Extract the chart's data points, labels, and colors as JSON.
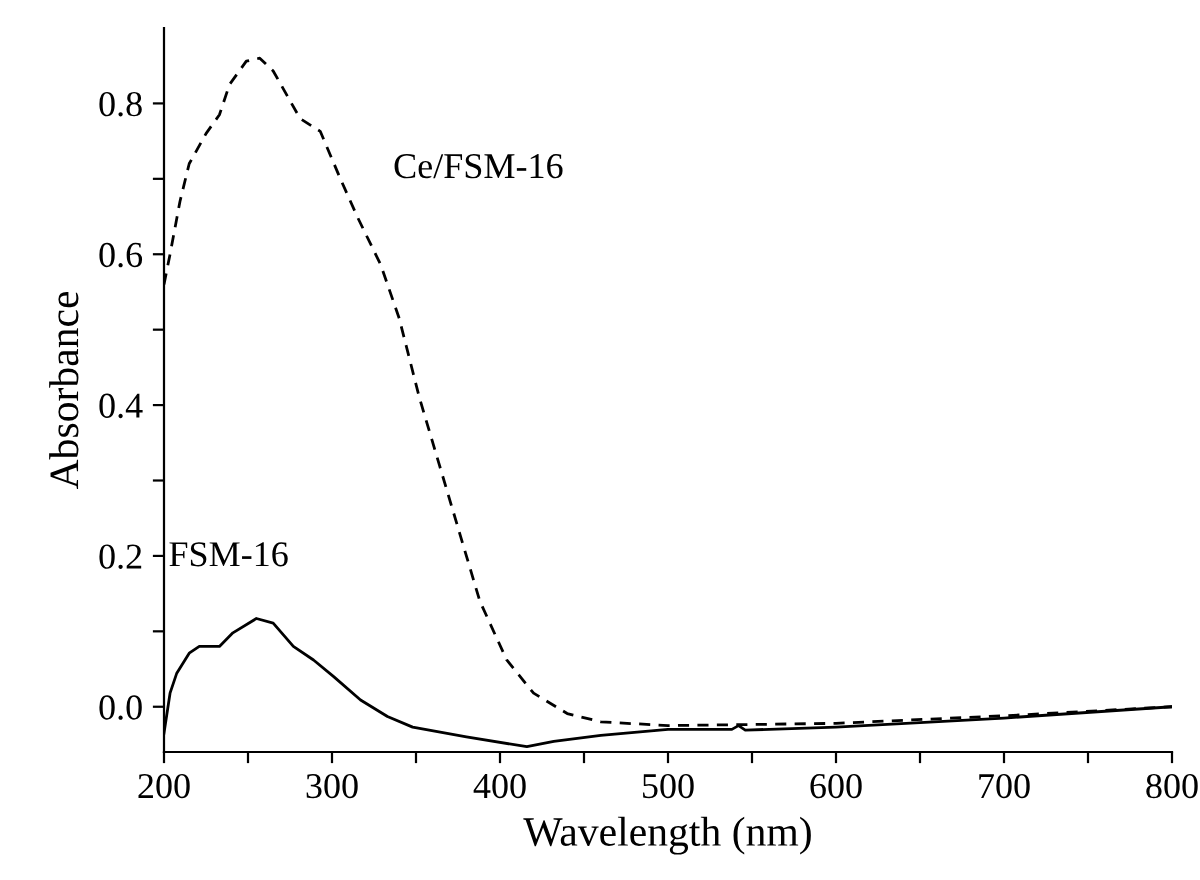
{
  "chart_data": {
    "type": "line",
    "xlabel": "Wavelength (nm)",
    "ylabel": "Absorbance",
    "xlim": [
      200,
      800
    ],
    "ylim": [
      -0.06,
      0.9
    ],
    "xticks": [
      200,
      {
        "value": 250,
        "label": null
      },
      300,
      {
        "value": 350,
        "label": null
      },
      400,
      {
        "value": 450,
        "label": null
      },
      500,
      {
        "value": 550,
        "label": null
      },
      600,
      {
        "value": 650,
        "label": null
      },
      700,
      {
        "value": 750,
        "label": null
      },
      800
    ],
    "yticks": [
      {
        "value": 0,
        "label": "0.0"
      },
      {
        "value": 0.1,
        "label": null
      },
      0.2,
      {
        "value": 0.3,
        "label": null
      },
      0.4,
      {
        "value": 0.5,
        "label": null
      },
      0.6,
      {
        "value": 0.7,
        "label": null
      },
      0.8
    ],
    "grid": false,
    "legend": false,
    "marker": "none",
    "series": [
      {
        "name": "Ce/FSM-16",
        "color": "#000000",
        "line_style": "dashed",
        "x": [
          200,
          203.6,
          209.5,
          215,
          225,
          233,
          239,
          249,
          257,
          265,
          281,
          293,
          305,
          315,
          329,
          340,
          352,
          364,
          376,
          388,
          404,
          420,
          440,
          460,
          500,
          600,
          700,
          800
        ],
        "values": [
          0.56,
          0.6,
          0.67,
          0.72,
          0.76,
          0.785,
          0.825,
          0.856,
          0.86,
          0.843,
          0.78,
          0.763,
          0.7,
          0.65,
          0.586,
          0.515,
          0.41,
          0.32,
          0.23,
          0.14,
          0.062,
          0.018,
          -0.009,
          -0.02,
          -0.025,
          -0.022,
          -0.012,
          0.0
        ]
      },
      {
        "name": "FSM-16",
        "color": "#000000",
        "line_style": "solid",
        "x": [
          200,
          203.6,
          207.5,
          215,
          221,
          233,
          241,
          255,
          265,
          277,
          289,
          301,
          317,
          333,
          348,
          380,
          416,
          432,
          460,
          500,
          538,
          542,
          546,
          600,
          700,
          800
        ],
        "values": [
          -0.035,
          0.018,
          0.044,
          0.071,
          0.08,
          0.08,
          0.098,
          0.117,
          0.111,
          0.08,
          0.062,
          0.04,
          0.009,
          -0.013,
          -0.027,
          -0.04,
          -0.053,
          -0.046,
          -0.038,
          -0.03,
          -0.03,
          -0.025,
          -0.031,
          -0.027,
          -0.015,
          0.0
        ]
      }
    ]
  }
}
